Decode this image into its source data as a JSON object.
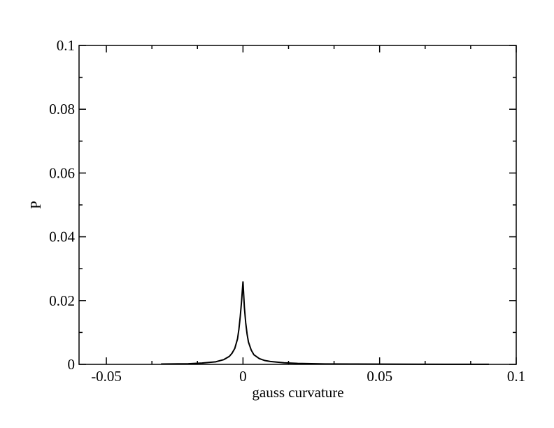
{
  "chart_data": {
    "type": "line",
    "x_label": "gauss curvature",
    "y_label": "P",
    "x": [
      -0.03,
      -0.02,
      -0.015,
      -0.01,
      -0.007,
      -0.005,
      -0.004,
      -0.003,
      -0.002,
      -0.0015,
      -0.001,
      -0.0005,
      0,
      0.0005,
      0.001,
      0.0015,
      0.002,
      0.003,
      0.004,
      0.006,
      0.008,
      0.01,
      0.015,
      0.02,
      0.03,
      0.04,
      0.06,
      0.09
    ],
    "series": [
      {
        "color": "#000000",
        "values": [
          0.0001,
          0.0002,
          0.0004,
          0.0008,
          0.0015,
          0.0025,
          0.0035,
          0.005,
          0.008,
          0.011,
          0.015,
          0.02,
          0.026,
          0.018,
          0.013,
          0.0095,
          0.007,
          0.0045,
          0.003,
          0.0018,
          0.0012,
          0.0009,
          0.0005,
          0.0003,
          0.00015,
          0.0001,
          5e-05,
          2e-05
        ]
      }
    ],
    "xlim": [
      -0.06,
      0.1
    ],
    "xticks": [
      -0.05,
      0,
      0.05,
      0.1
    ],
    "xminorticks": [
      -0.03333,
      -0.01667,
      0.01667,
      0.03333,
      0.06667,
      0.08333
    ],
    "ylim": [
      0,
      0.1
    ],
    "yticks": [
      0,
      0.02,
      0.04,
      0.06,
      0.08,
      0.1
    ],
    "yminorticks": [
      0.01,
      0.03,
      0.05,
      0.07,
      0.09
    ]
  }
}
